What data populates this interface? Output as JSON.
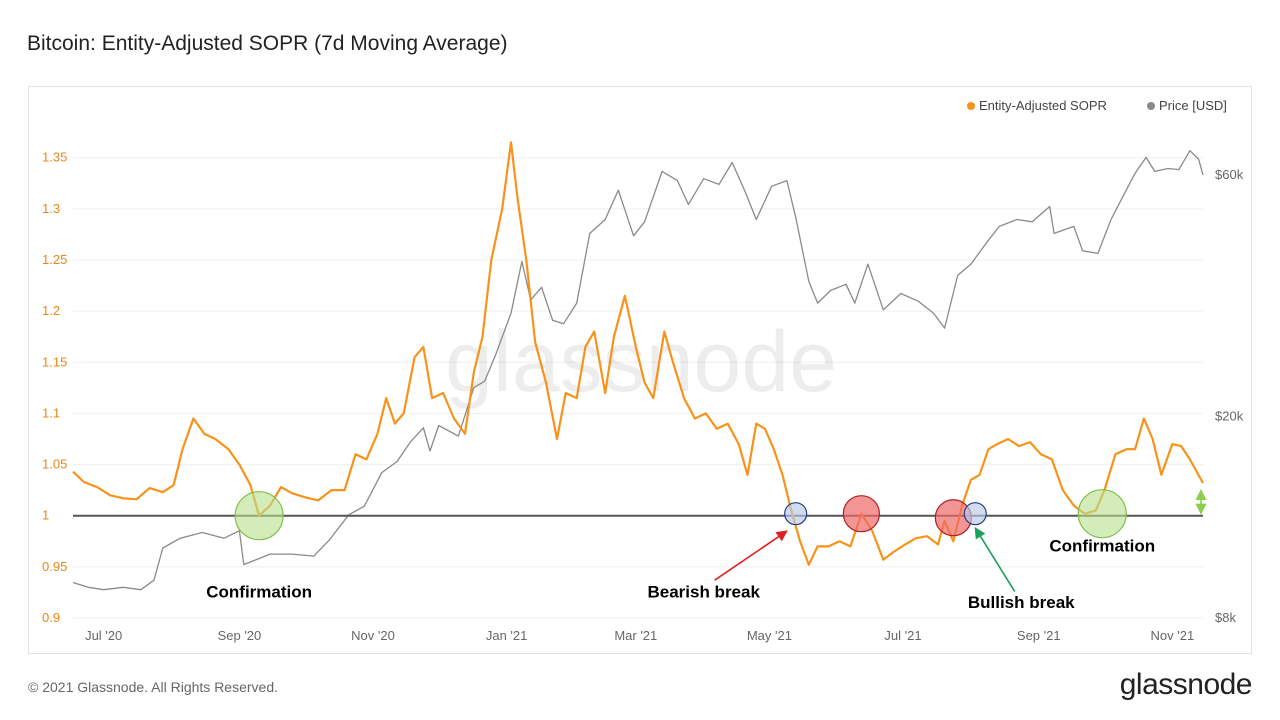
{
  "page": {
    "title": "Bitcoin: Entity-Adjusted SOPR (7d Moving Average)",
    "footer_copyright": "© 2021 Glassnode. All Rights Reserved.",
    "footer_logo": "glassnode",
    "watermark": "glassnode"
  },
  "colors": {
    "sopr": "#f7931a",
    "price": "#8a8a8a",
    "baseline": "#555555",
    "circle_green": "#b5e08c",
    "circle_red": "#f06868",
    "circle_blue": "#b9c9e8",
    "arrow_red": "#e02020",
    "arrow_green": "#1aa05a",
    "arrow_lightgreen": "#8ccf4a"
  },
  "chart_data": {
    "type": "line",
    "title": "Bitcoin: Entity-Adjusted SOPR (7d Moving Average)",
    "legend": {
      "position": "top-right",
      "items": [
        "Entity-Adjusted SOPR",
        "Price [USD]"
      ]
    },
    "x": {
      "domain": [
        "2020-06-17",
        "2021-11-15"
      ],
      "ticks": [
        {
          "date": "2020-07-01",
          "label": "Jul '20"
        },
        {
          "date": "2020-09-01",
          "label": "Sep '20"
        },
        {
          "date": "2020-11-01",
          "label": "Nov '20"
        },
        {
          "date": "2021-01-01",
          "label": "Jan '21"
        },
        {
          "date": "2021-03-01",
          "label": "Mar '21"
        },
        {
          "date": "2021-05-01",
          "label": "May '21"
        },
        {
          "date": "2021-07-01",
          "label": "Jul '21"
        },
        {
          "date": "2021-09-01",
          "label": "Sep '21"
        },
        {
          "date": "2021-11-01",
          "label": "Nov '21"
        }
      ]
    },
    "y_left": {
      "range": [
        0.9,
        1.38
      ],
      "ticks": [
        {
          "v": 0.9,
          "label": "0.9"
        },
        {
          "v": 0.95,
          "label": "0.95"
        },
        {
          "v": 1.0,
          "label": "1"
        },
        {
          "v": 1.05,
          "label": "1.05"
        },
        {
          "v": 1.1,
          "label": "1.1"
        },
        {
          "v": 1.15,
          "label": "1.15"
        },
        {
          "v": 1.2,
          "label": "1.2"
        },
        {
          "v": 1.25,
          "label": "1.25"
        },
        {
          "v": 1.3,
          "label": "1.3"
        },
        {
          "v": 1.35,
          "label": "1.35"
        }
      ]
    },
    "y_right": {
      "scale": "log",
      "ticks": [
        {
          "v": 8000,
          "label": "$8k"
        },
        {
          "v": 20000,
          "label": "$20k"
        },
        {
          "v": 60000,
          "label": "$60k"
        }
      ]
    },
    "grid": true,
    "baseline": 1.0,
    "series": [
      {
        "name": "Entity-Adjusted SOPR",
        "axis": "left",
        "points": [
          [
            "2020-06-17",
            1.043
          ],
          [
            "2020-06-22",
            1.033
          ],
          [
            "2020-06-28",
            1.028
          ],
          [
            "2020-07-04",
            1.02
          ],
          [
            "2020-07-10",
            1.017
          ],
          [
            "2020-07-16",
            1.016
          ],
          [
            "2020-07-22",
            1.027
          ],
          [
            "2020-07-28",
            1.023
          ],
          [
            "2020-08-02",
            1.03
          ],
          [
            "2020-08-06",
            1.065
          ],
          [
            "2020-08-11",
            1.095
          ],
          [
            "2020-08-16",
            1.08
          ],
          [
            "2020-08-21",
            1.075
          ],
          [
            "2020-08-27",
            1.065
          ],
          [
            "2020-09-01",
            1.05
          ],
          [
            "2020-09-06",
            1.03
          ],
          [
            "2020-09-10",
            1.0
          ],
          [
            "2020-09-15",
            1.01
          ],
          [
            "2020-09-20",
            1.028
          ],
          [
            "2020-09-25",
            1.022
          ],
          [
            "2020-10-01",
            1.018
          ],
          [
            "2020-10-07",
            1.015
          ],
          [
            "2020-10-13",
            1.025
          ],
          [
            "2020-10-19",
            1.025
          ],
          [
            "2020-10-24",
            1.06
          ],
          [
            "2020-10-29",
            1.055
          ],
          [
            "2020-11-03",
            1.08
          ],
          [
            "2020-11-07",
            1.115
          ],
          [
            "2020-11-11",
            1.09
          ],
          [
            "2020-11-15",
            1.1
          ],
          [
            "2020-11-20",
            1.155
          ],
          [
            "2020-11-24",
            1.165
          ],
          [
            "2020-11-28",
            1.115
          ],
          [
            "2020-12-03",
            1.12
          ],
          [
            "2020-12-08",
            1.095
          ],
          [
            "2020-12-13",
            1.08
          ],
          [
            "2020-12-17",
            1.14
          ],
          [
            "2020-12-21",
            1.175
          ],
          [
            "2020-12-25",
            1.25
          ],
          [
            "2020-12-30",
            1.3
          ],
          [
            "2021-01-03",
            1.365
          ],
          [
            "2021-01-06",
            1.31
          ],
          [
            "2021-01-10",
            1.25
          ],
          [
            "2021-01-14",
            1.17
          ],
          [
            "2021-01-19",
            1.13
          ],
          [
            "2021-01-24",
            1.075
          ],
          [
            "2021-01-28",
            1.12
          ],
          [
            "2021-02-02",
            1.115
          ],
          [
            "2021-02-06",
            1.165
          ],
          [
            "2021-02-10",
            1.18
          ],
          [
            "2021-02-15",
            1.12
          ],
          [
            "2021-02-19",
            1.175
          ],
          [
            "2021-02-24",
            1.215
          ],
          [
            "2021-03-01",
            1.165
          ],
          [
            "2021-03-05",
            1.13
          ],
          [
            "2021-03-09",
            1.115
          ],
          [
            "2021-03-14",
            1.18
          ],
          [
            "2021-03-18",
            1.15
          ],
          [
            "2021-03-23",
            1.115
          ],
          [
            "2021-03-28",
            1.095
          ],
          [
            "2021-04-02",
            1.1
          ],
          [
            "2021-04-07",
            1.085
          ],
          [
            "2021-04-12",
            1.09
          ],
          [
            "2021-04-17",
            1.07
          ],
          [
            "2021-04-21",
            1.04
          ],
          [
            "2021-04-25",
            1.09
          ],
          [
            "2021-04-29",
            1.085
          ],
          [
            "2021-05-03",
            1.065
          ],
          [
            "2021-05-07",
            1.04
          ],
          [
            "2021-05-11",
            1.005
          ],
          [
            "2021-05-15",
            0.975
          ],
          [
            "2021-05-19",
            0.952
          ],
          [
            "2021-05-23",
            0.97
          ],
          [
            "2021-05-28",
            0.97
          ],
          [
            "2021-06-02",
            0.975
          ],
          [
            "2021-06-07",
            0.97
          ],
          [
            "2021-06-12",
            1.002
          ],
          [
            "2021-06-17",
            0.985
          ],
          [
            "2021-06-22",
            0.957
          ],
          [
            "2021-06-27",
            0.965
          ],
          [
            "2021-07-02",
            0.972
          ],
          [
            "2021-07-07",
            0.978
          ],
          [
            "2021-07-12",
            0.98
          ],
          [
            "2021-07-17",
            0.972
          ],
          [
            "2021-07-20",
            0.995
          ],
          [
            "2021-07-24",
            0.975
          ],
          [
            "2021-07-28",
            1.01
          ],
          [
            "2021-08-01",
            1.035
          ],
          [
            "2021-08-05",
            1.04
          ],
          [
            "2021-08-09",
            1.065
          ],
          [
            "2021-08-13",
            1.07
          ],
          [
            "2021-08-18",
            1.075
          ],
          [
            "2021-08-23",
            1.068
          ],
          [
            "2021-08-28",
            1.072
          ],
          [
            "2021-09-02",
            1.06
          ],
          [
            "2021-09-07",
            1.055
          ],
          [
            "2021-09-12",
            1.025
          ],
          [
            "2021-09-17",
            1.01
          ],
          [
            "2021-09-22",
            1.002
          ],
          [
            "2021-09-27",
            1.005
          ],
          [
            "2021-10-01",
            1.025
          ],
          [
            "2021-10-06",
            1.06
          ],
          [
            "2021-10-11",
            1.065
          ],
          [
            "2021-10-15",
            1.065
          ],
          [
            "2021-10-19",
            1.095
          ],
          [
            "2021-10-23",
            1.075
          ],
          [
            "2021-10-27",
            1.04
          ],
          [
            "2021-11-01",
            1.07
          ],
          [
            "2021-11-05",
            1.068
          ],
          [
            "2021-11-09",
            1.055
          ],
          [
            "2021-11-15",
            1.032
          ]
        ]
      },
      {
        "name": "Price [USD]",
        "axis": "right",
        "points": [
          [
            "2020-06-17",
            9400
          ],
          [
            "2020-06-24",
            9200
          ],
          [
            "2020-07-01",
            9100
          ],
          [
            "2020-07-10",
            9200
          ],
          [
            "2020-07-18",
            9100
          ],
          [
            "2020-07-24",
            9500
          ],
          [
            "2020-07-28",
            11000
          ],
          [
            "2020-08-05",
            11500
          ],
          [
            "2020-08-15",
            11800
          ],
          [
            "2020-08-25",
            11500
          ],
          [
            "2020-09-01",
            11900
          ],
          [
            "2020-09-03",
            10200
          ],
          [
            "2020-09-15",
            10700
          ],
          [
            "2020-09-25",
            10700
          ],
          [
            "2020-10-05",
            10600
          ],
          [
            "2020-10-12",
            11400
          ],
          [
            "2020-10-21",
            12800
          ],
          [
            "2020-10-28",
            13300
          ],
          [
            "2020-11-05",
            15500
          ],
          [
            "2020-11-12",
            16300
          ],
          [
            "2020-11-18",
            17800
          ],
          [
            "2020-11-24",
            19000
          ],
          [
            "2020-11-27",
            17100
          ],
          [
            "2020-12-01",
            19200
          ],
          [
            "2020-12-10",
            18300
          ],
          [
            "2020-12-17",
            22800
          ],
          [
            "2020-12-22",
            23500
          ],
          [
            "2020-12-27",
            26500
          ],
          [
            "2021-01-03",
            32000
          ],
          [
            "2021-01-08",
            40500
          ],
          [
            "2021-01-12",
            34000
          ],
          [
            "2021-01-17",
            36000
          ],
          [
            "2021-01-22",
            31000
          ],
          [
            "2021-01-27",
            30500
          ],
          [
            "2021-02-02",
            33500
          ],
          [
            "2021-02-08",
            46000
          ],
          [
            "2021-02-15",
            49000
          ],
          [
            "2021-02-21",
            56000
          ],
          [
            "2021-02-28",
            45500
          ],
          [
            "2021-03-05",
            48500
          ],
          [
            "2021-03-13",
            61000
          ],
          [
            "2021-03-20",
            58500
          ],
          [
            "2021-03-25",
            52500
          ],
          [
            "2021-04-01",
            59000
          ],
          [
            "2021-04-08",
            57500
          ],
          [
            "2021-04-14",
            63500
          ],
          [
            "2021-04-20",
            55500
          ],
          [
            "2021-04-25",
            49000
          ],
          [
            "2021-05-02",
            57000
          ],
          [
            "2021-05-09",
            58500
          ],
          [
            "2021-05-13",
            49500
          ],
          [
            "2021-05-19",
            37000
          ],
          [
            "2021-05-23",
            33500
          ],
          [
            "2021-05-29",
            35500
          ],
          [
            "2021-06-05",
            36500
          ],
          [
            "2021-06-09",
            33500
          ],
          [
            "2021-06-15",
            40000
          ],
          [
            "2021-06-22",
            32500
          ],
          [
            "2021-06-30",
            35000
          ],
          [
            "2021-07-08",
            33800
          ],
          [
            "2021-07-15",
            32000
          ],
          [
            "2021-07-20",
            29900
          ],
          [
            "2021-07-26",
            38000
          ],
          [
            "2021-08-01",
            40000
          ],
          [
            "2021-08-08",
            44000
          ],
          [
            "2021-08-14",
            47500
          ],
          [
            "2021-08-22",
            49000
          ],
          [
            "2021-08-29",
            48500
          ],
          [
            "2021-09-06",
            52000
          ],
          [
            "2021-09-08",
            46000
          ],
          [
            "2021-09-17",
            47500
          ],
          [
            "2021-09-21",
            42500
          ],
          [
            "2021-09-28",
            42000
          ],
          [
            "2021-10-04",
            49000
          ],
          [
            "2021-10-10",
            55000
          ],
          [
            "2021-10-15",
            60500
          ],
          [
            "2021-10-20",
            65000
          ],
          [
            "2021-10-24",
            61000
          ],
          [
            "2021-10-30",
            61800
          ],
          [
            "2021-11-04",
            61500
          ],
          [
            "2021-11-09",
            67000
          ],
          [
            "2021-11-13",
            64500
          ],
          [
            "2021-11-15",
            60000
          ]
        ]
      }
    ],
    "annotations": {
      "circles": [
        {
          "date": "2020-09-10",
          "v": 1.0,
          "color": "green",
          "size": "large"
        },
        {
          "date": "2021-05-13",
          "v": 1.002,
          "color": "blue",
          "size": "small"
        },
        {
          "date": "2021-06-12",
          "v": 1.002,
          "color": "red",
          "size": "medium"
        },
        {
          "date": "2021-07-24",
          "v": 0.998,
          "color": "red",
          "size": "medium"
        },
        {
          "date": "2021-08-03",
          "v": 1.002,
          "color": "blue",
          "size": "small"
        },
        {
          "date": "2021-09-30",
          "v": 1.002,
          "color": "green",
          "size": "large"
        }
      ],
      "labels": [
        {
          "text": "Confirmation",
          "date": "2020-09-10",
          "v": 0.92
        },
        {
          "text": "Bearish break",
          "date": "2021-04-01",
          "v": 0.92
        },
        {
          "text": "Bullish break",
          "date": "2021-08-24",
          "v": 0.91
        },
        {
          "text": "Confirmation",
          "date": "2021-09-30",
          "v": 0.965
        }
      ],
      "arrows": [
        {
          "color": "red",
          "from": [
            "2021-04-06",
            0.937
          ],
          "to": [
            "2021-05-09",
            0.985
          ]
        },
        {
          "color": "green",
          "from": [
            "2021-08-21",
            0.926
          ],
          "to": [
            "2021-08-03",
            0.988
          ]
        },
        {
          "color": "lightgreen",
          "double": true,
          "from": [
            "2021-11-15",
            1.025
          ],
          "to": [
            "2021-11-15",
            1.002
          ]
        }
      ]
    }
  }
}
